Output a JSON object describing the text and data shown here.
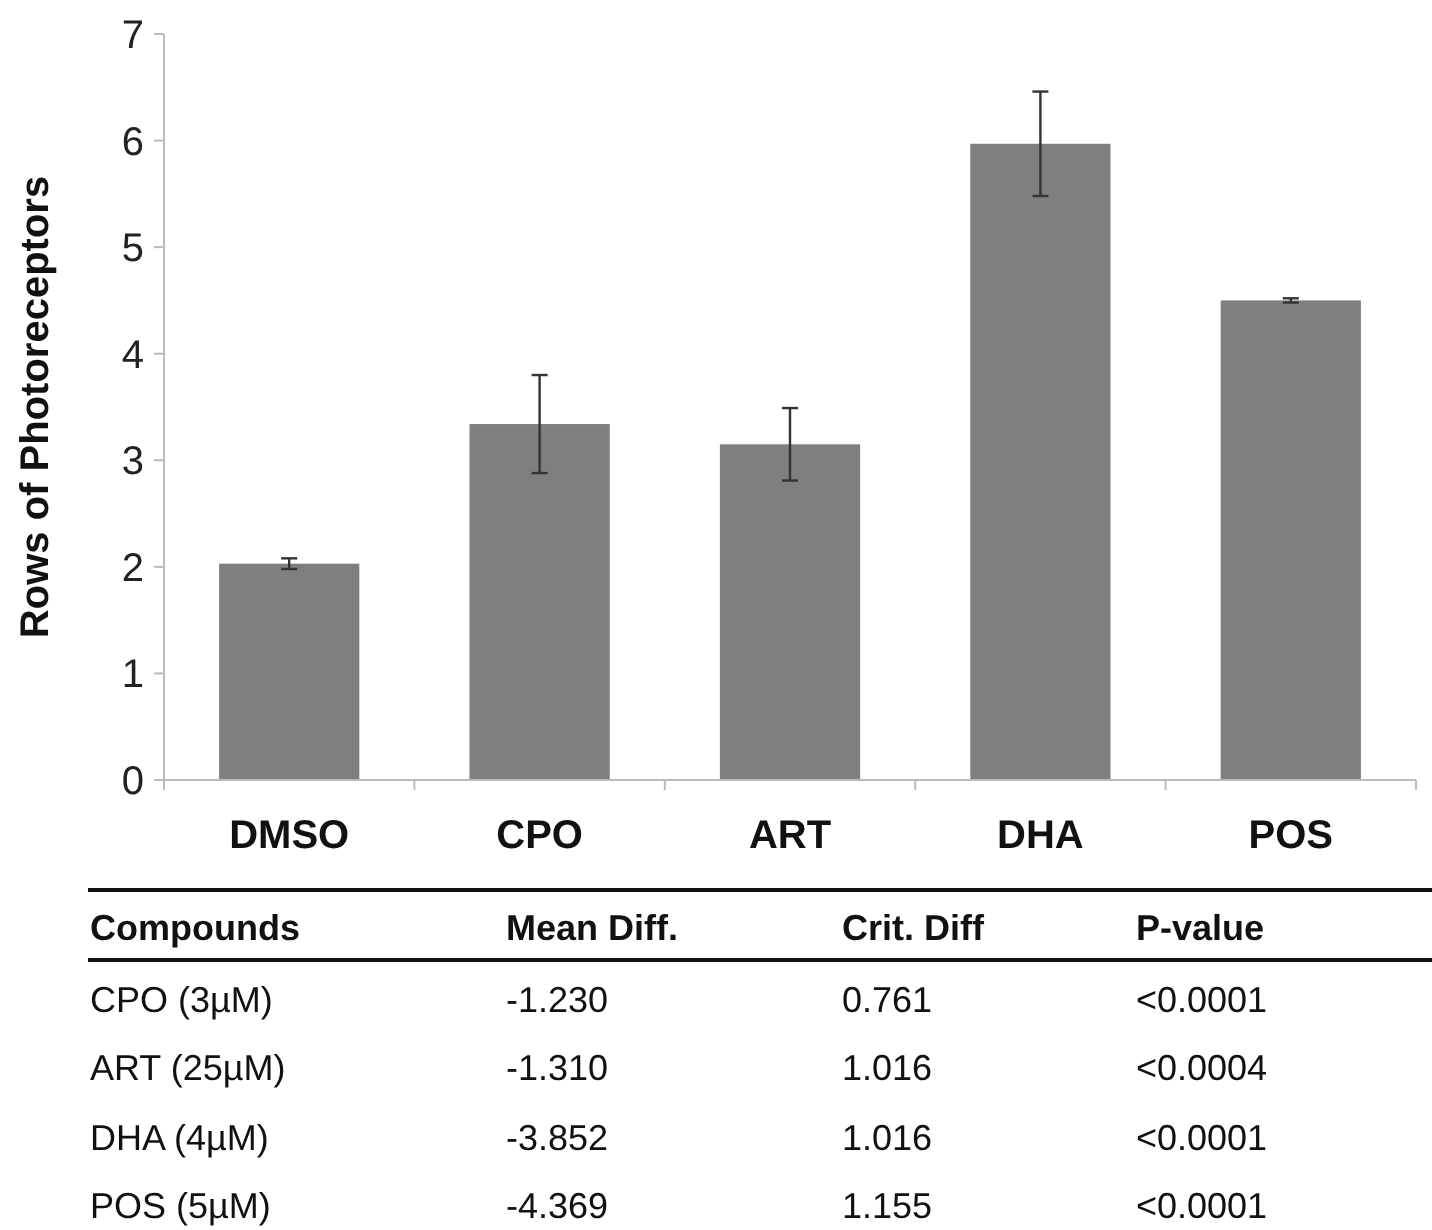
{
  "chart_data": {
    "type": "bar",
    "ylabel": "Rows of Photoreceptors",
    "categories": [
      "DMSO",
      "CPO",
      "ART",
      "DHA",
      "POS"
    ],
    "values": [
      2.03,
      3.34,
      3.15,
      5.97,
      4.5
    ],
    "errors": [
      0.05,
      0.46,
      0.34,
      0.49,
      0.02
    ],
    "color": "#7f7f7f",
    "ylim": [
      0,
      7
    ],
    "yticks": [
      0,
      1,
      2,
      3,
      4,
      5,
      6,
      7
    ],
    "grid": false,
    "annotations": [
      "Compounds",
      "Mean Diff.",
      "Crit. Diff",
      "P-value",
      "CPO (3µM)",
      "-1.230",
      "0.761",
      "<0.0001",
      "ART (25µM)",
      "-1.310",
      "1.016",
      "<0.0004",
      "DHA (4µM)",
      "-3.852",
      "1.016",
      "<0.0001",
      "POS (5µM)",
      "-4.369",
      "1.155",
      "<0.0001"
    ]
  }
}
